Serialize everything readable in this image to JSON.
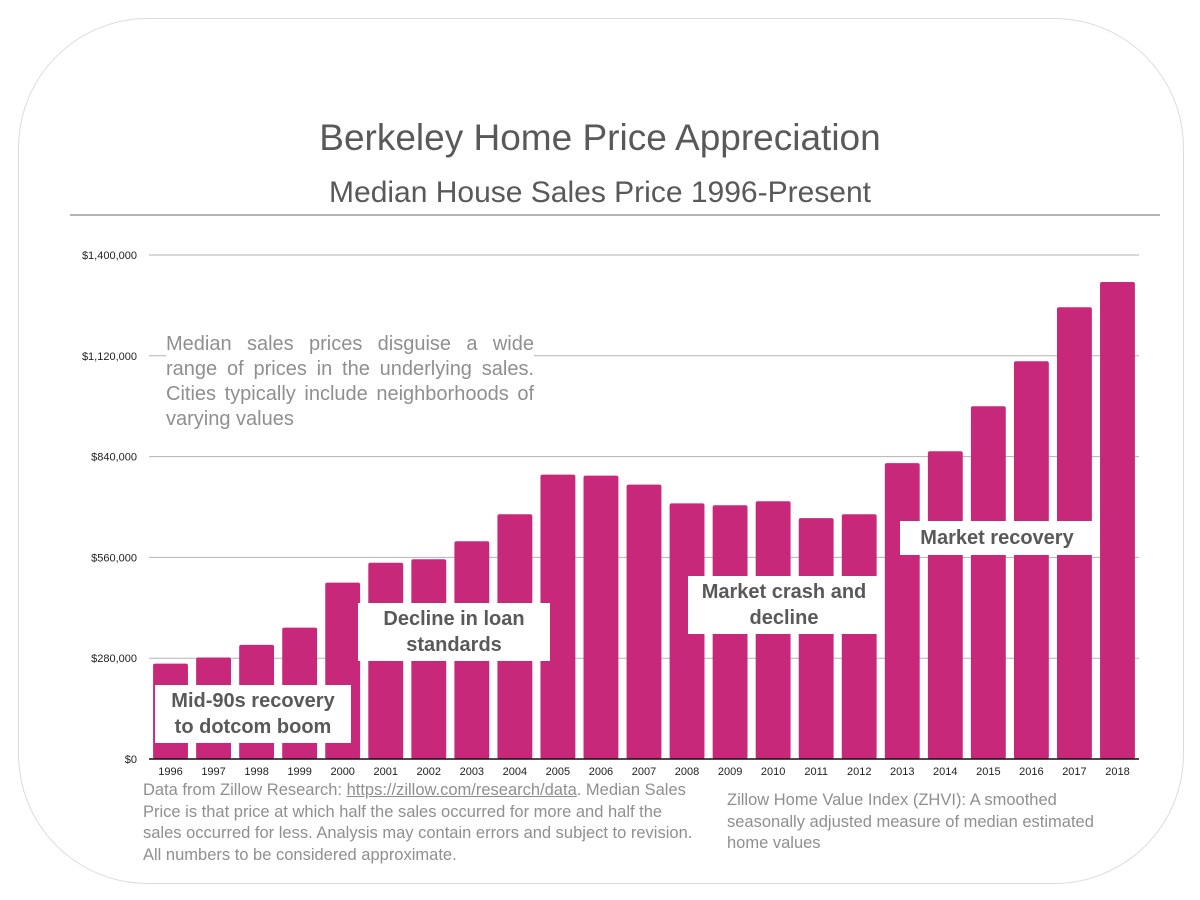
{
  "title": "Berkeley Home Price Appreciation",
  "subtitle": "Median House Sales Price 1996-Present",
  "note": "Median sales prices disguise a wide range of prices in the underlying sales. Cities typically include neighborhoods of varying values",
  "annotations": {
    "mid90s": "Mid-90s recovery to dotcom boom",
    "loan": "Decline in loan standards",
    "crash": "Market crash and decline",
    "recovery": "Market recovery"
  },
  "footer_left": {
    "prefix": "Data from Zillow Research: ",
    "link": "https://zillow.com/research/data",
    "suffix": ". Median Sales Price is that price at which half the sales occurred for more and half the sales occurred for less.  Analysis may contain errors and subject to revision.  All numbers to be considered approximate."
  },
  "footer_right": "Zillow Home Value Index (ZHVI): A smoothed seasonally adjusted measure of median estimated home values",
  "colors": {
    "bar": "#c8287a",
    "text": "#595959",
    "muted": "#8f8f8f",
    "grid": "#b3b3b3"
  },
  "chart_data": {
    "type": "bar",
    "title": "Berkeley Home Price Appreciation",
    "subtitle": "Median House Sales Price 1996-Present",
    "categories": [
      "1996",
      "1997",
      "1998",
      "1999",
      "2000",
      "2001",
      "2002",
      "2003",
      "2004",
      "2005",
      "2006",
      "2007",
      "2008",
      "2009",
      "2010",
      "2011",
      "2012",
      "2013",
      "2014",
      "2015",
      "2016",
      "2017",
      "2018"
    ],
    "values": [
      265000,
      282000,
      317000,
      365000,
      490000,
      545000,
      555000,
      605000,
      680000,
      790000,
      787000,
      762000,
      710000,
      705000,
      716000,
      669000,
      680000,
      822000,
      855000,
      980000,
      1105000,
      1255000,
      1325000
    ],
    "ylim": [
      0,
      1400000
    ],
    "yticks": [
      0,
      280000,
      560000,
      840000,
      1120000,
      1400000
    ],
    "ytick_labels": [
      "$0",
      "$280,000",
      "$560,000",
      "$840,000",
      "$1,120,000",
      "$1,400,000"
    ],
    "grid": true,
    "legend": "none"
  }
}
